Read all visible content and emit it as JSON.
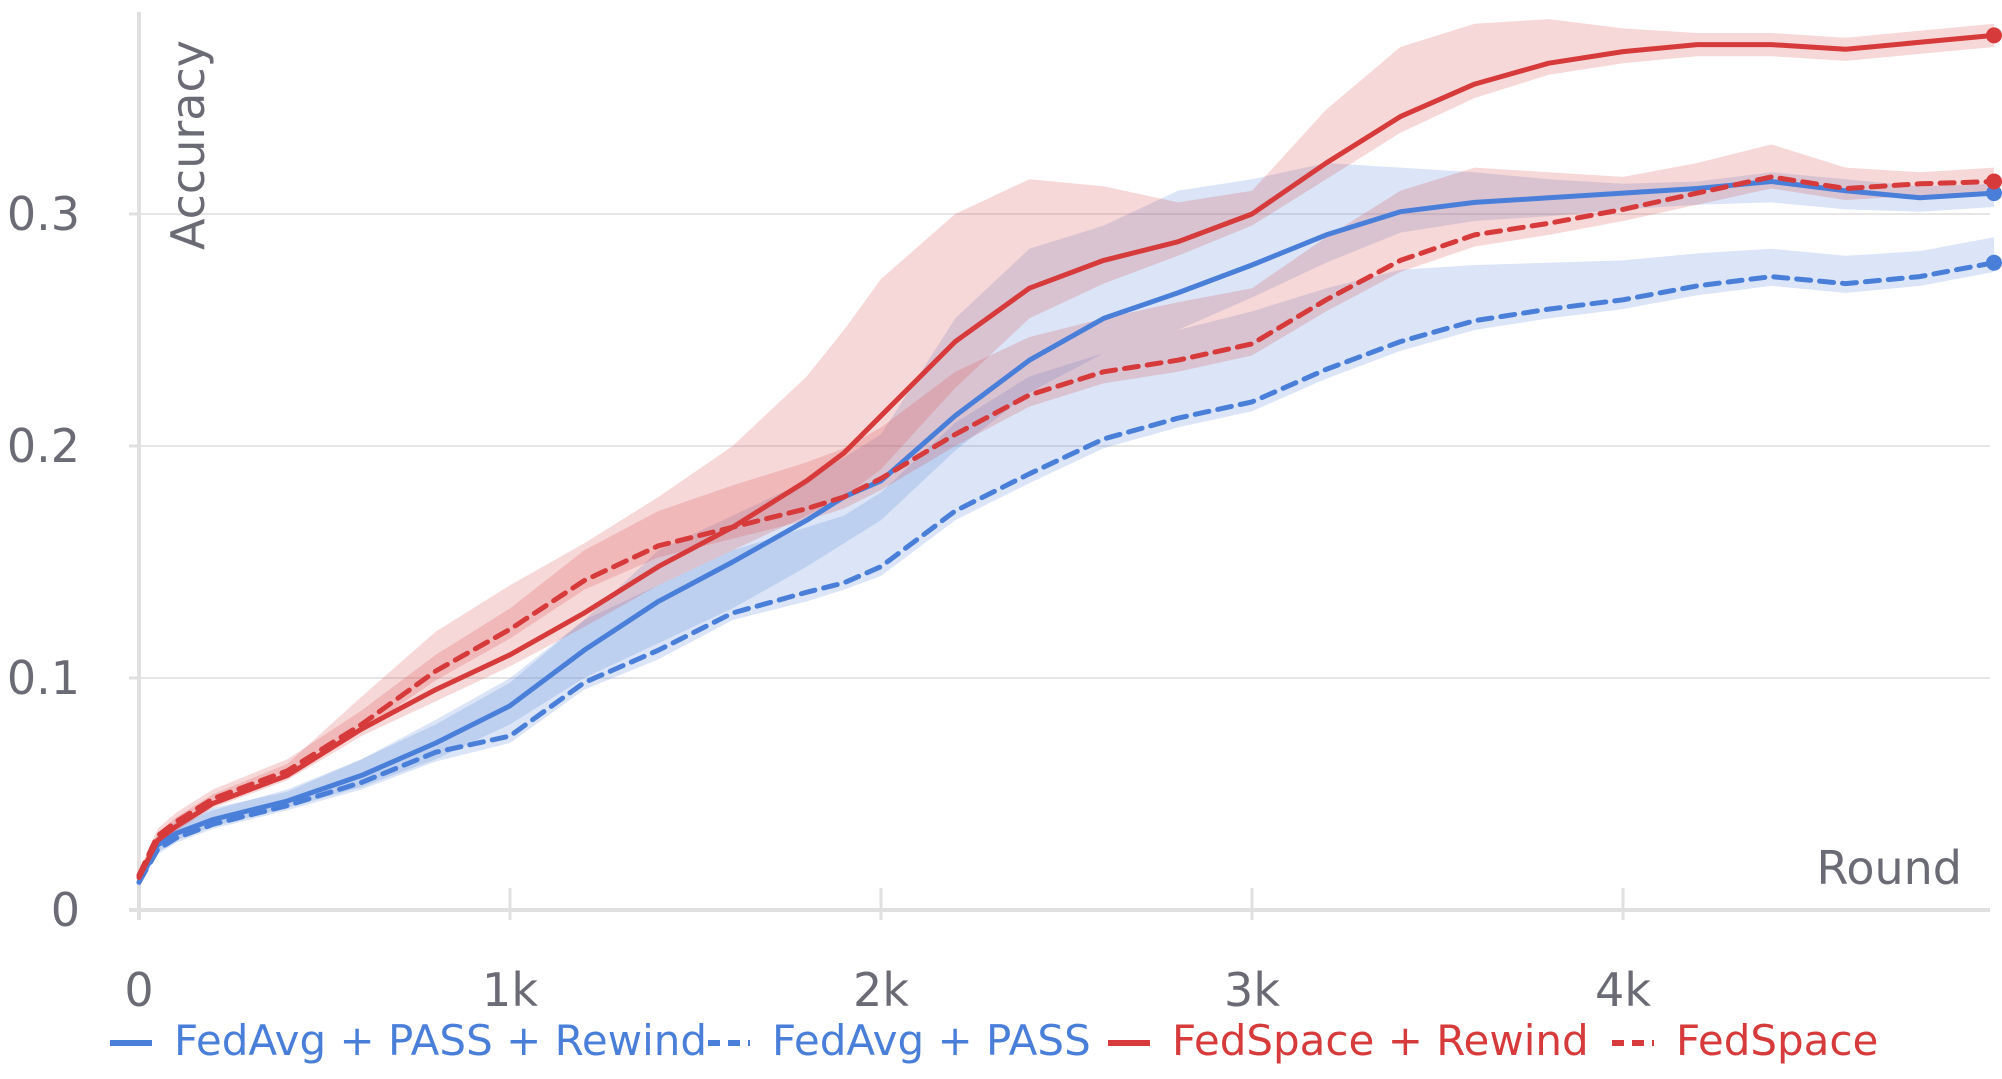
{
  "chart_data": {
    "type": "line",
    "title": "",
    "xlabel": "Round",
    "ylabel": "Accuracy",
    "xlim": [
      0,
      5000
    ],
    "ylim": [
      0,
      0.38
    ],
    "grid": true,
    "legend_position": "bottom",
    "x_ticks": [
      {
        "value": 0,
        "label": "0"
      },
      {
        "value": 1000,
        "label": "1k"
      },
      {
        "value": 2000,
        "label": "2k"
      },
      {
        "value": 3000,
        "label": "3k"
      },
      {
        "value": 4000,
        "label": "4k"
      }
    ],
    "y_ticks": [
      {
        "value": 0,
        "label": "0"
      },
      {
        "value": 0.1,
        "label": "0.1"
      },
      {
        "value": 0.2,
        "label": "0.2"
      },
      {
        "value": 0.3,
        "label": "0.3"
      }
    ],
    "x": [
      0,
      50,
      100,
      200,
      400,
      600,
      800,
      1000,
      1200,
      1400,
      1600,
      1800,
      1900,
      2000,
      2200,
      2400,
      2600,
      2800,
      3000,
      3200,
      3400,
      3600,
      3800,
      4000,
      4200,
      4400,
      4600,
      4800,
      5000
    ],
    "series": [
      {
        "name": "FedAvg + PASS + Rewind",
        "color": "#4a7fd9",
        "dash": false,
        "values": [
          0.012,
          0.028,
          0.033,
          0.039,
          0.047,
          0.058,
          0.072,
          0.088,
          0.112,
          0.133,
          0.15,
          0.168,
          0.178,
          0.185,
          0.213,
          0.237,
          0.255,
          0.266,
          0.278,
          0.291,
          0.301,
          0.305,
          0.307,
          0.309,
          0.311,
          0.314,
          0.31,
          0.307,
          0.309
        ],
        "band_low": [
          0.01,
          0.025,
          0.03,
          0.036,
          0.044,
          0.053,
          0.065,
          0.08,
          0.1,
          0.115,
          0.13,
          0.148,
          0.158,
          0.168,
          0.198,
          0.223,
          0.24,
          0.25,
          0.264,
          0.279,
          0.292,
          0.297,
          0.299,
          0.302,
          0.304,
          0.305,
          0.302,
          0.301,
          0.303
        ],
        "band_high": [
          0.014,
          0.032,
          0.038,
          0.044,
          0.051,
          0.065,
          0.082,
          0.1,
          0.125,
          0.155,
          0.17,
          0.185,
          0.195,
          0.205,
          0.255,
          0.285,
          0.295,
          0.31,
          0.315,
          0.322,
          0.32,
          0.318,
          0.315,
          0.313,
          0.314,
          0.318,
          0.315,
          0.312,
          0.313
        ]
      },
      {
        "name": "FedAvg + PASS",
        "color": "#4a7fd9",
        "dash": true,
        "values": [
          0.012,
          0.026,
          0.031,
          0.037,
          0.045,
          0.055,
          0.068,
          0.075,
          0.098,
          0.112,
          0.128,
          0.137,
          0.141,
          0.148,
          0.172,
          0.188,
          0.203,
          0.212,
          0.219,
          0.233,
          0.245,
          0.254,
          0.259,
          0.263,
          0.269,
          0.273,
          0.27,
          0.273,
          0.279
        ],
        "band_low": [
          0.01,
          0.024,
          0.029,
          0.035,
          0.043,
          0.052,
          0.064,
          0.072,
          0.095,
          0.108,
          0.125,
          0.133,
          0.138,
          0.144,
          0.168,
          0.184,
          0.199,
          0.208,
          0.215,
          0.229,
          0.241,
          0.25,
          0.255,
          0.259,
          0.265,
          0.269,
          0.266,
          0.269,
          0.275
        ],
        "band_high": [
          0.014,
          0.03,
          0.036,
          0.043,
          0.052,
          0.065,
          0.08,
          0.098,
          0.125,
          0.14,
          0.155,
          0.165,
          0.17,
          0.18,
          0.21,
          0.23,
          0.24,
          0.25,
          0.258,
          0.268,
          0.276,
          0.278,
          0.279,
          0.28,
          0.283,
          0.285,
          0.282,
          0.284,
          0.29
        ]
      },
      {
        "name": "FedSpace + Rewind",
        "color": "#d63a3a",
        "dash": false,
        "values": [
          0.014,
          0.03,
          0.036,
          0.046,
          0.058,
          0.078,
          0.095,
          0.11,
          0.128,
          0.148,
          0.165,
          0.185,
          0.197,
          0.213,
          0.245,
          0.268,
          0.28,
          0.288,
          0.3,
          0.322,
          0.342,
          0.356,
          0.365,
          0.37,
          0.373,
          0.373,
          0.371,
          0.374,
          0.377
        ],
        "band_low": [
          0.012,
          0.028,
          0.034,
          0.044,
          0.056,
          0.075,
          0.09,
          0.105,
          0.122,
          0.14,
          0.155,
          0.17,
          0.178,
          0.19,
          0.225,
          0.255,
          0.27,
          0.282,
          0.295,
          0.315,
          0.335,
          0.35,
          0.36,
          0.365,
          0.368,
          0.368,
          0.366,
          0.369,
          0.372
        ],
        "band_high": [
          0.016,
          0.033,
          0.04,
          0.05,
          0.063,
          0.092,
          0.12,
          0.14,
          0.158,
          0.178,
          0.2,
          0.23,
          0.25,
          0.272,
          0.3,
          0.315,
          0.312,
          0.305,
          0.31,
          0.345,
          0.372,
          0.382,
          0.384,
          0.38,
          0.378,
          0.378,
          0.376,
          0.379,
          0.382
        ]
      },
      {
        "name": "FedSpace",
        "color": "#d63a3a",
        "dash": true,
        "values": [
          0.015,
          0.032,
          0.038,
          0.048,
          0.06,
          0.08,
          0.103,
          0.121,
          0.142,
          0.157,
          0.165,
          0.173,
          0.178,
          0.186,
          0.205,
          0.222,
          0.232,
          0.237,
          0.244,
          0.263,
          0.28,
          0.291,
          0.296,
          0.302,
          0.309,
          0.316,
          0.311,
          0.313,
          0.314
        ],
        "band_low": [
          0.013,
          0.03,
          0.036,
          0.046,
          0.058,
          0.077,
          0.099,
          0.117,
          0.138,
          0.152,
          0.16,
          0.168,
          0.173,
          0.181,
          0.2,
          0.217,
          0.227,
          0.232,
          0.239,
          0.258,
          0.275,
          0.286,
          0.291,
          0.297,
          0.304,
          0.311,
          0.306,
          0.308,
          0.309
        ],
        "band_high": [
          0.017,
          0.035,
          0.042,
          0.052,
          0.065,
          0.086,
          0.11,
          0.13,
          0.155,
          0.172,
          0.183,
          0.193,
          0.199,
          0.208,
          0.232,
          0.247,
          0.255,
          0.262,
          0.268,
          0.29,
          0.31,
          0.32,
          0.318,
          0.316,
          0.322,
          0.33,
          0.32,
          0.318,
          0.32
        ]
      }
    ]
  }
}
